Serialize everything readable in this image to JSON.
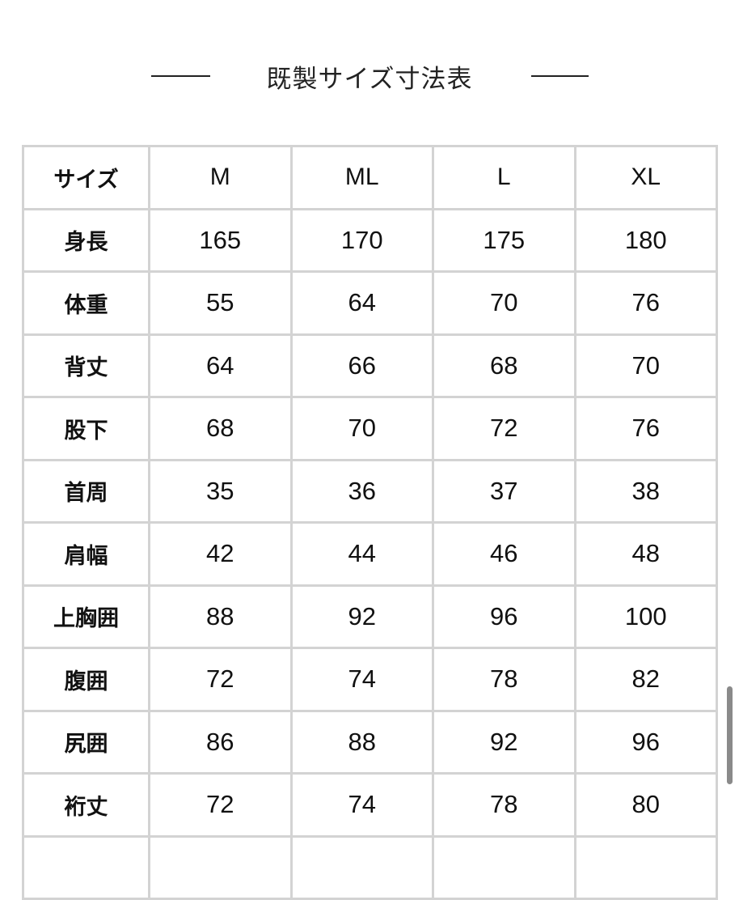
{
  "title": "既製サイズ寸法表",
  "table": {
    "header": [
      "サイズ",
      "M",
      "ML",
      "L",
      "XL"
    ],
    "rows": [
      [
        "身長",
        "165",
        "170",
        "175",
        "180"
      ],
      [
        "体重",
        "55",
        "64",
        "70",
        "76"
      ],
      [
        "背丈",
        "64",
        "66",
        "68",
        "70"
      ],
      [
        "股下",
        "68",
        "70",
        "72",
        "76"
      ],
      [
        "首周",
        "35",
        "36",
        "37",
        "38"
      ],
      [
        "肩幅",
        "42",
        "44",
        "46",
        "48"
      ],
      [
        "上胸囲",
        "88",
        "92",
        "96",
        "100"
      ],
      [
        "腹囲",
        "72",
        "74",
        "78",
        "82"
      ],
      [
        "尻囲",
        "86",
        "88",
        "92",
        "96"
      ],
      [
        "裄丈",
        "72",
        "74",
        "78",
        "80"
      ],
      [
        "",
        "",
        "",
        "",
        ""
      ]
    ]
  }
}
